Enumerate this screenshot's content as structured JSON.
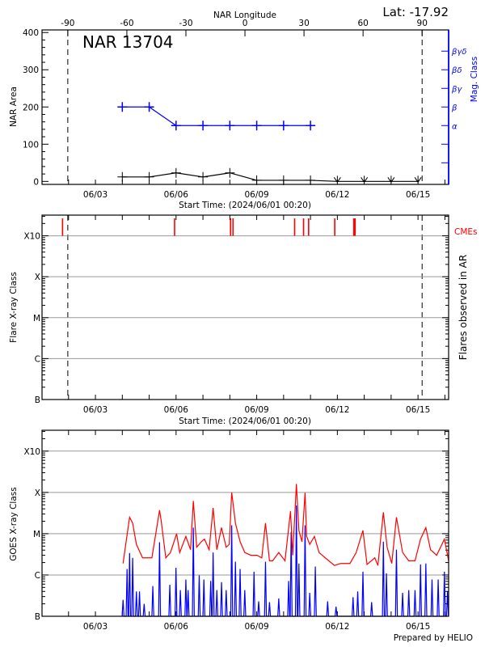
{
  "header": {
    "latitude": "Lat: -17.92",
    "top_axis_label": "NAR Longitude",
    "region_name": "NAR 13704",
    "footer": "Prepared by HELIO"
  },
  "time_axis": {
    "start": "06/01 00:20",
    "end": "06/16 03:20",
    "label": "Start Time: (2024/06/01 00:20)",
    "tick_labels": [
      "06/03",
      "06/06",
      "06/09",
      "06/12",
      "06/15"
    ]
  },
  "limb_crossings": [
    "06/01 23:20",
    "06/15 03:40"
  ],
  "chart_data": [
    {
      "type": "line",
      "ylabel": "NAR Area",
      "ylabel_right": "Mag. Class",
      "ylim": [
        -8,
        407
      ],
      "y_ticks": [
        0,
        100,
        200,
        300,
        400
      ],
      "top_axis": {
        "label": "NAR Longitude",
        "ticks": [
          -90,
          -60,
          -30,
          0,
          30,
          60,
          90
        ]
      },
      "mag_class_ticks": [
        {
          "value": 50,
          "label": ""
        },
        {
          "value": 100,
          "label": ""
        },
        {
          "value": 150,
          "label": "α"
        },
        {
          "value": 200,
          "label": "β"
        },
        {
          "value": 250,
          "label": "βγ"
        },
        {
          "value": 300,
          "label": "βδ"
        },
        {
          "value": 350,
          "label": "βγδ"
        }
      ],
      "area_series": {
        "color": "#000000",
        "x": [
          "06/04 00:00",
          "06/05 00:00",
          "06/06 00:00",
          "06/07 00:00",
          "06/08 00:00",
          "06/09 00:00",
          "06/10 00:00",
          "06/11 00:00",
          "06/12 00:00",
          "06/13 00:00",
          "06/14 00:00",
          "06/15 00:00"
        ],
        "values": [
          12,
          12,
          23,
          12,
          23,
          3,
          3,
          3,
          0,
          0,
          0,
          0
        ]
      },
      "mag_series": {
        "color": "#0000ff",
        "x": [
          "06/04 00:00",
          "06/05 00:00",
          "06/06 00:00",
          "06/07 00:00",
          "06/08 00:00",
          "06/09 00:00",
          "06/10 00:00",
          "06/11 00:00"
        ],
        "values": [
          "β",
          "β",
          "α",
          "α",
          "α",
          "α",
          "α",
          "α"
        ]
      }
    },
    {
      "type": "scatter",
      "ylabel": "Flare X-ray Class",
      "ylabel_right": "Flares observed in AR",
      "y_scale": "log",
      "ylim": [
        1e-07,
        0.0032
      ],
      "class_ticks": [
        {
          "value": 1e-07,
          "label": "B"
        },
        {
          "value": 1e-06,
          "label": "C"
        },
        {
          "value": 1e-05,
          "label": "M"
        },
        {
          "value": 0.0001,
          "label": "X"
        },
        {
          "value": 0.001,
          "label": "X10"
        }
      ],
      "grid": true,
      "cme_label": "CMEs",
      "cme_color": "#ff0000",
      "cme_times": [
        "06/01 18:40",
        "06/05 22:40",
        "06/08 00:40",
        "06/08 02:50",
        "06/10 09:50",
        "06/10 17:50",
        "06/10 22:20",
        "06/11 21:40",
        "06/12 14:40",
        "06/12 15:50"
      ],
      "flares": []
    },
    {
      "type": "line",
      "ylabel": "GOES X-ray Class",
      "y_scale": "log",
      "ylim": [
        1e-07,
        0.0032
      ],
      "class_ticks": [
        {
          "value": 1e-07,
          "label": "B"
        },
        {
          "value": 1e-06,
          "label": "C"
        },
        {
          "value": 1e-05,
          "label": "M"
        },
        {
          "value": 0.0001,
          "label": "X"
        },
        {
          "value": 0.001,
          "label": "X10"
        }
      ],
      "grid": true,
      "series": [
        {
          "color": "#ff0000",
          "x": [
            "06/04 00:40",
            "06/04 06:30",
            "06/04 09:15",
            "06/04 12:35",
            "06/04 18:05",
            "06/05 02:25",
            "06/05 09:15",
            "06/05 10:40",
            "06/05 14:50",
            "06/05 19:00",
            "06/06 00:30",
            "06/06 03:15",
            "06/06 08:45",
            "06/06 12:55",
            "06/06 15:25",
            "06/06 18:25",
            "06/06 22:35",
            "06/07 01:20",
            "06/07 05:30",
            "06/07 09:05",
            "06/07 12:25",
            "06/07 16:35",
            "06/07 20:45",
            "06/07 23:30",
            "06/08 01:40",
            "06/08 05:00",
            "06/08 09:10",
            "06/08 13:20",
            "06/08 18:50",
            "06/09 00:20",
            "06/09 04:30",
            "06/09 07:50",
            "06/09 11:25",
            "06/09 14:10",
            "06/09 19:40",
            "06/10 01:15",
            "06/10 06:10",
            "06/10 08:10",
            "06/10 11:25",
            "06/10 13:40",
            "06/10 16:25",
            "06/10 19:10",
            "06/10 20:35",
            "06/10 23:20",
            "06/11 03:30",
            "06/11 07:40",
            "06/11 13:10",
            "06/11 21:25",
            "06/12 03:00",
            "06/12 11:15",
            "06/12 16:50",
            "06/12 22:50",
            "06/13 02:30",
            "06/13 09:25",
            "06/13 12:10",
            "06/13 17:05",
            "06/13 20:25",
            "06/14 00:35",
            "06/14 04:45",
            "06/14 10:15",
            "06/14 15:45",
            "06/14 21:20",
            "06/15 02:15",
            "06/15 07:00",
            "06/15 11:10",
            "06/15 16:40",
            "06/15 23:35",
            "06/16 03:20"
          ],
          "values": [
            1.9e-06,
            2.5e-05,
            1.8e-05,
            5.5e-06,
            2.6e-06,
            2.6e-06,
            3.7e-05,
            2.1e-05,
            2.6e-06,
            3.5e-06,
            1e-05,
            3.5e-06,
            8.6e-06,
            4.1e-06,
            6.2e-05,
            4.7e-06,
            6.4e-06,
            7.4e-06,
            4.1e-06,
            4.2e-05,
            4.1e-06,
            1.4e-05,
            4.7e-06,
            5.5e-06,
            0.0001,
            1.8e-05,
            6.4e-06,
            3.5e-06,
            3e-06,
            3e-06,
            2.6e-06,
            1.8e-05,
            2.2e-06,
            2.2e-06,
            3.5e-06,
            2.2e-06,
            3.5e-05,
            3e-06,
            0.00016,
            1.2e-05,
            6.4e-06,
            9.8e-05,
            8.6e-06,
            5.5e-06,
            8.6e-06,
            3.5e-06,
            2.6e-06,
            1.7e-06,
            1.9e-06,
            1.9e-06,
            3.5e-06,
            1.2e-05,
            1.8e-06,
            2.6e-06,
            1.7e-06,
            3.3e-05,
            4.7e-06,
            1.9e-06,
            2.5e-05,
            3.5e-06,
            2.2e-06,
            2.2e-06,
            7.4e-06,
            1.4e-05,
            4.1e-06,
            3e-06,
            7.4e-06,
            2.2e-06
          ]
        },
        {
          "color": "#0000ff",
          "x": [
            "06/04 00:40",
            "06/04 04:15",
            "06/04 06:30",
            "06/04 09:15",
            "06/04 12:35",
            "06/04 15:20",
            "06/04 19:30",
            "06/05 03:15",
            "06/05 09:15",
            "06/05 18:25",
            "06/05 23:55",
            "06/06 03:50",
            "06/06 08:45",
            "06/06 10:45",
            "06/06 15:25",
            "06/06 20:40",
            "06/07 00:50",
            "06/07 06:55",
            "06/07 09:05",
            "06/07 12:25",
            "06/07 16:35",
            "06/07 20:45",
            "06/08 01:40",
            "06/08 05:00",
            "06/08 09:10",
            "06/08 13:20",
            "06/08 21:35",
            "06/09 01:45",
            "06/09 07:50",
            "06/09 11:25",
            "06/09 19:40",
            "06/10 04:30",
            "06/10 06:45",
            "06/10 11:25",
            "06/10 13:40",
            "06/10 19:10",
            "06/10 23:20",
            "06/11 04:20",
            "06/11 15:20",
            "06/11 22:50",
            "06/12 14:00",
            "06/12 18:10",
            "06/12 22:50",
            "06/13 06:35",
            "06/13 17:05",
            "06/13 19:50",
            "06/14 04:45",
            "06/14 10:15",
            "06/14 15:45",
            "06/14 21:20",
            "06/15 02:15",
            "06/15 07:00",
            "06/15 12:30",
            "06/15 18:00",
            "06/15 23:35",
            "06/16 02:20"
          ],
          "values": [
            2.5e-07,
            1.4e-06,
            3.4e-06,
            2.6e-06,
            4e-07,
            4e-07,
            2e-07,
            5.4e-07,
            6.2e-06,
            5.8e-07,
            1.5e-06,
            4.3e-07,
            7.8e-07,
            4.3e-07,
            1.4e-05,
            9.8e-07,
            7.8e-07,
            7.2e-07,
            3.5e-06,
            4.3e-07,
            6.7e-07,
            4.3e-07,
            1.6e-05,
            2.1e-06,
            1.4e-06,
            4.3e-07,
            1.2e-06,
            2.3e-07,
            2.1e-06,
            2.2e-07,
            2.7e-07,
            7.2e-07,
            1.1e-05,
            4.8e-05,
            1.9e-06,
            1.6e-05,
            3.7e-07,
            1.6e-06,
            2.3e-07,
            1.7e-07,
            2.9e-07,
            4e-07,
            1.2e-06,
            2.2e-07,
            6.4e-06,
            1.1e-06,
            4.1e-06,
            3.7e-07,
            4.3e-07,
            4.3e-07,
            1.8e-06,
            1.9e-06,
            7.8e-07,
            7.8e-07,
            1.2e-06,
            4e-07
          ]
        }
      ]
    }
  ]
}
